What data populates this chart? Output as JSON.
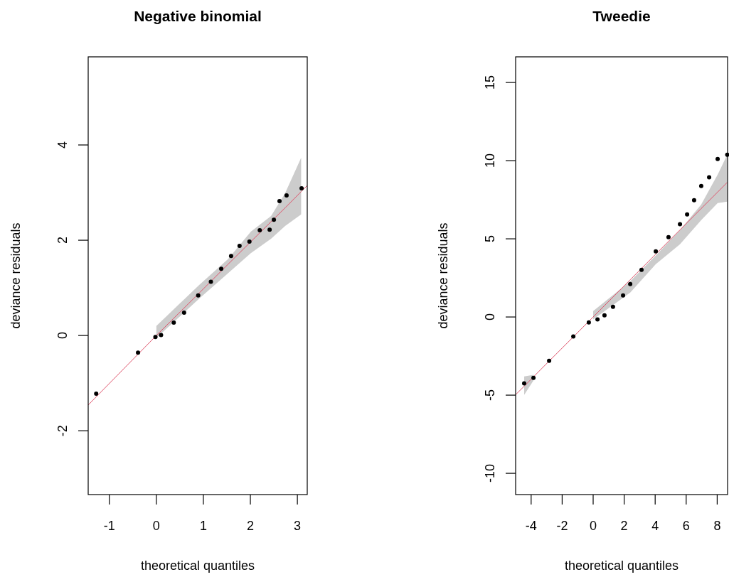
{
  "chart_data": [
    {
      "type": "scatter",
      "title": "Negative binomial",
      "xlabel": "theoretical quantiles",
      "ylabel": "deviance residuals",
      "xlim": [
        -1.45,
        3.21
      ],
      "ylim": [
        -3.34,
        5.85
      ],
      "xticks": [
        -1,
        0,
        1,
        2,
        3
      ],
      "yticks": [
        -2,
        0,
        2,
        4
      ],
      "series": [
        {
          "type": "line",
          "color": "#df536b",
          "x": [
            -1.45,
            0,
            0.92,
            1.53,
            2.01,
            2.44,
            2.74,
            3.08,
            3.21
          ],
          "values": [
            -1.46,
            0,
            0.9,
            1.5,
            1.97,
            2.39,
            2.68,
            3.02,
            3.15
          ],
          "lower": [
            null,
            -0.05,
            0.78,
            1.31,
            1.73,
            2.03,
            2.3,
            2.54,
            null
          ],
          "upper": [
            null,
            0.2,
            1.07,
            1.61,
            2.18,
            2.51,
            2.99,
            3.73,
            null
          ]
        },
        {
          "marker": "circle",
          "color": "#000000",
          "x": [
            -1.28,
            -0.39,
            -0.02,
            0.1,
            0.37,
            0.59,
            0.89,
            1.16,
            1.38,
            1.59,
            1.77,
            1.98,
            2.2,
            2.41,
            2.5,
            2.62,
            2.77,
            3.09
          ],
          "values": [
            -1.22,
            -0.36,
            -0.03,
            0.01,
            0.27,
            0.48,
            0.84,
            1.13,
            1.4,
            1.67,
            1.88,
            1.97,
            2.21,
            2.22,
            2.43,
            2.82,
            2.94,
            3.09
          ]
        }
      ]
    },
    {
      "type": "scatter",
      "title": "Tweedie",
      "xlabel": "theoretical quantiles",
      "ylabel": "deviance residuals",
      "xlim": [
        -5,
        8.67
      ],
      "ylim": [
        -11.36,
        16.64
      ],
      "xticks": [
        -4,
        -2,
        0,
        2,
        4,
        6,
        8
      ],
      "yticks": [
        -10,
        -5,
        0,
        5,
        10,
        15
      ],
      "series": [
        {
          "type": "line",
          "color": "#df536b",
          "x": [
            -5,
            -4.45,
            -3.85,
            -3.3,
            -0.3,
            0,
            2.39,
            4.04,
            5.6,
            6.97,
            8.03,
            8.65
          ],
          "values": [
            -4.97,
            -4.43,
            -3.83,
            -3.28,
            -0.3,
            0,
            2.38,
            4.02,
            5.57,
            6.94,
            7.99,
            8.61
          ],
          "lower": [
            null,
            -4.98,
            -4.07,
            null,
            null,
            -0.16,
            1.56,
            3.38,
            4.65,
            6.2,
            7.29,
            7.38
          ],
          "upper": [
            null,
            -3.8,
            -3.7,
            null,
            null,
            0.38,
            2.29,
            3.93,
            5.56,
            7.2,
            9.11,
            10.38
          ]
        },
        {
          "marker": "circle",
          "color": "#000000",
          "x": [
            -4.45,
            -3.85,
            -2.84,
            -1.28,
            -0.28,
            0.28,
            0.73,
            1.28,
            1.93,
            2.39,
            3.12,
            4.04,
            4.86,
            5.6,
            6.06,
            6.51,
            6.97,
            7.48,
            8.03,
            8.65
          ],
          "values": [
            -4.25,
            -3.89,
            -2.8,
            -1.25,
            -0.35,
            -0.16,
            0.11,
            0.65,
            1.38,
            2.11,
            3.02,
            4.2,
            5.11,
            5.93,
            6.56,
            7.47,
            8.38,
            8.93,
            10.11,
            10.38
          ]
        }
      ]
    }
  ]
}
